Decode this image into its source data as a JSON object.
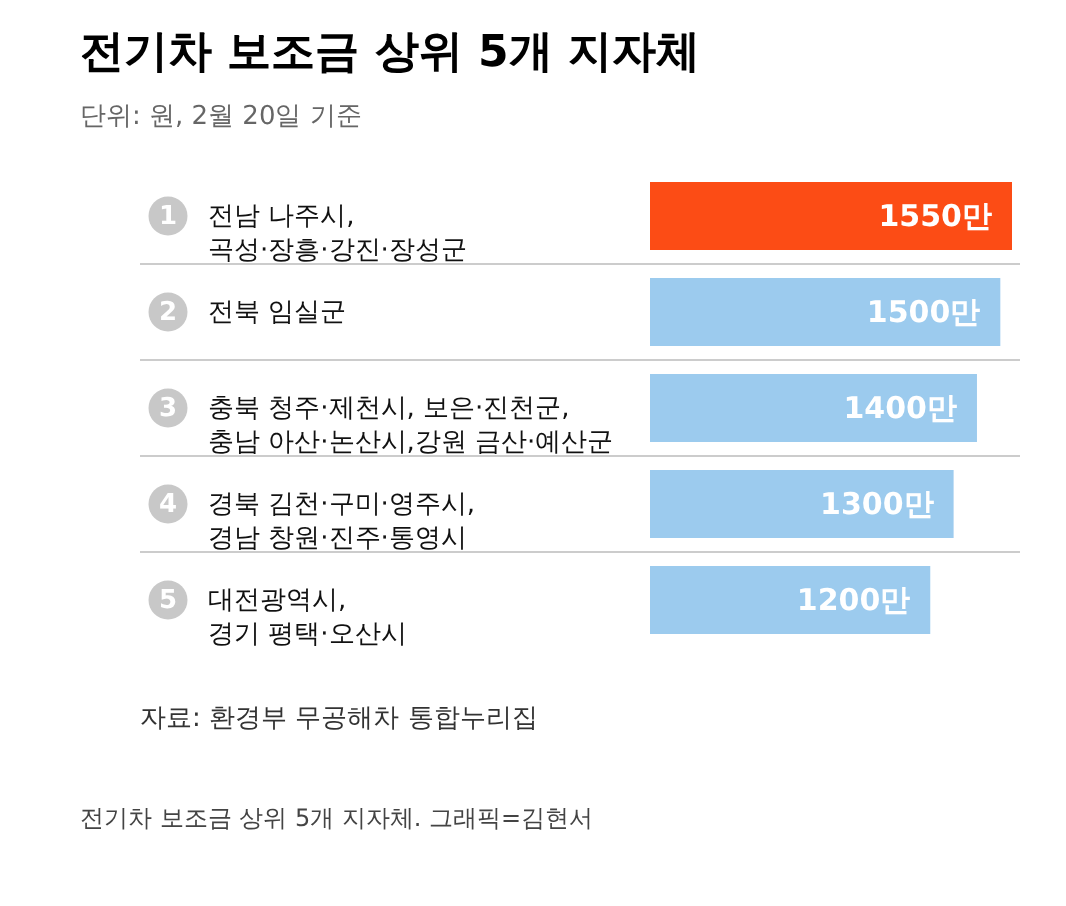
{
  "chart_data": {
    "type": "bar",
    "orientation": "horizontal",
    "title": "전기차 보조금 상위 5개 지자체",
    "subtitle": "단위: 원, 2월 20일 기준",
    "categories": [
      "전남 나주시,\n곡성·장흥·강진·장성군",
      "전북 임실군",
      "충북 청주·제천시, 보은·진천군,\n충남 아산·논산시,강원 금산·예산군",
      "경북 김천·구미·영주시,\n경남 창원·진주·통영시",
      "대전광역시,\n경기 평택·오산시"
    ],
    "values": [
      1550,
      1500,
      1400,
      1300,
      1200
    ],
    "colors": [
      "#fc4c15",
      "#9ccbee",
      "#9ccbee",
      "#9ccbee",
      "#9ccbee"
    ],
    "value_labels": [
      "1550만",
      "1500만",
      "1400만",
      "1300만",
      "1200만"
    ],
    "xlim": [
      0,
      1550
    ],
    "annotations": [
      "자료: 환경부 무공해차 통합누리집",
      "전기차 보조금 상위 5개 지자체. 그래픽=김현서",
      "1",
      "2",
      "3",
      "4",
      "5"
    ]
  }
}
